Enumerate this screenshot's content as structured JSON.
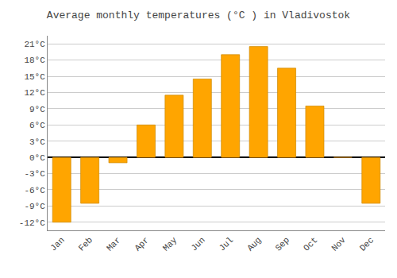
{
  "chart_data": {
    "type": "bar",
    "title": "Average monthly temperatures (°C ) in Vladivostok",
    "categories": [
      "Jan",
      "Feb",
      "Mar",
      "Apr",
      "May",
      "Jun",
      "Jul",
      "Aug",
      "Sep",
      "Oct",
      "Nov",
      "Dec"
    ],
    "values": [
      -12,
      -8.5,
      -1,
      6,
      11.5,
      14.5,
      19,
      20.5,
      16.5,
      9.5,
      0,
      -8.5
    ],
    "color": "#FFA500",
    "ylim": [
      -13.5,
      22.5
    ],
    "yticks": [
      {
        "value": -12,
        "label": "-12°C"
      },
      {
        "value": -9,
        "label": "-9°C"
      },
      {
        "value": -6,
        "label": "-6°C"
      },
      {
        "value": -3,
        "label": "-3°C"
      },
      {
        "value": 0,
        "label": "0°C"
      },
      {
        "value": 3,
        "label": "3°C"
      },
      {
        "value": 6,
        "label": "6°C"
      },
      {
        "value": 9,
        "label": "9°C"
      },
      {
        "value": 12,
        "label": "12°C"
      },
      {
        "value": 15,
        "label": "15°C"
      },
      {
        "value": 18,
        "label": "18°C"
      },
      {
        "value": 21,
        "label": "21°C"
      }
    ],
    "grid": true
  }
}
